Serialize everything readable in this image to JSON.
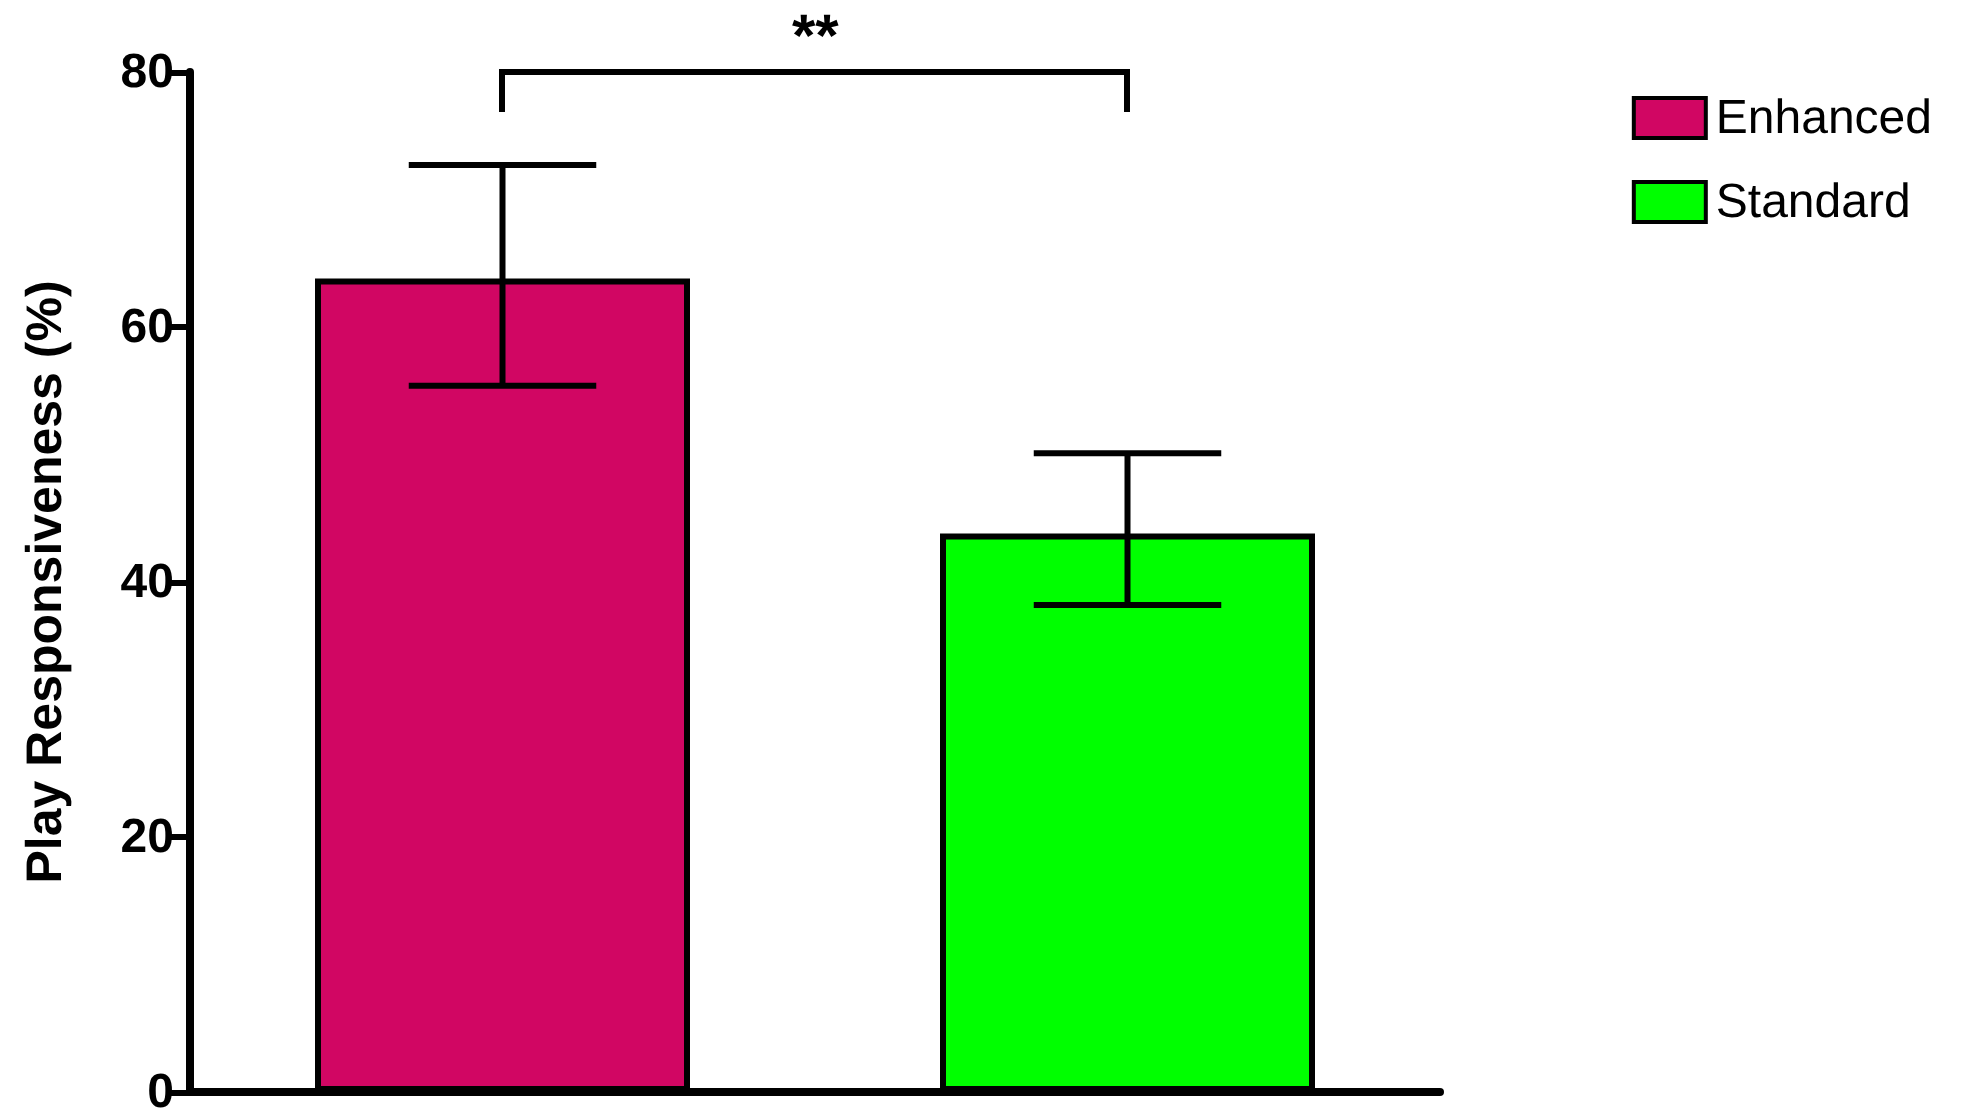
{
  "chart_data": {
    "type": "bar",
    "ylabel": "Play Responsiveness (%)",
    "categories": [
      null,
      null
    ],
    "series": [
      {
        "name": "Enhanced",
        "color": "#d10663",
        "values": [
          63.8,
          null
        ],
        "errors": [
          [
            55.4,
            72.7
          ],
          null
        ]
      },
      {
        "name": "Standard",
        "color": "#00ff00",
        "values": [
          null,
          43.8
        ],
        "errors": [
          null,
          [
            38.2,
            50.1
          ]
        ]
      }
    ],
    "ylim": [
      0,
      80
    ],
    "yticks": [
      0,
      20,
      40,
      60,
      80
    ],
    "grid": false,
    "legend": "top right",
    "annotations": [
      "**"
    ]
  }
}
